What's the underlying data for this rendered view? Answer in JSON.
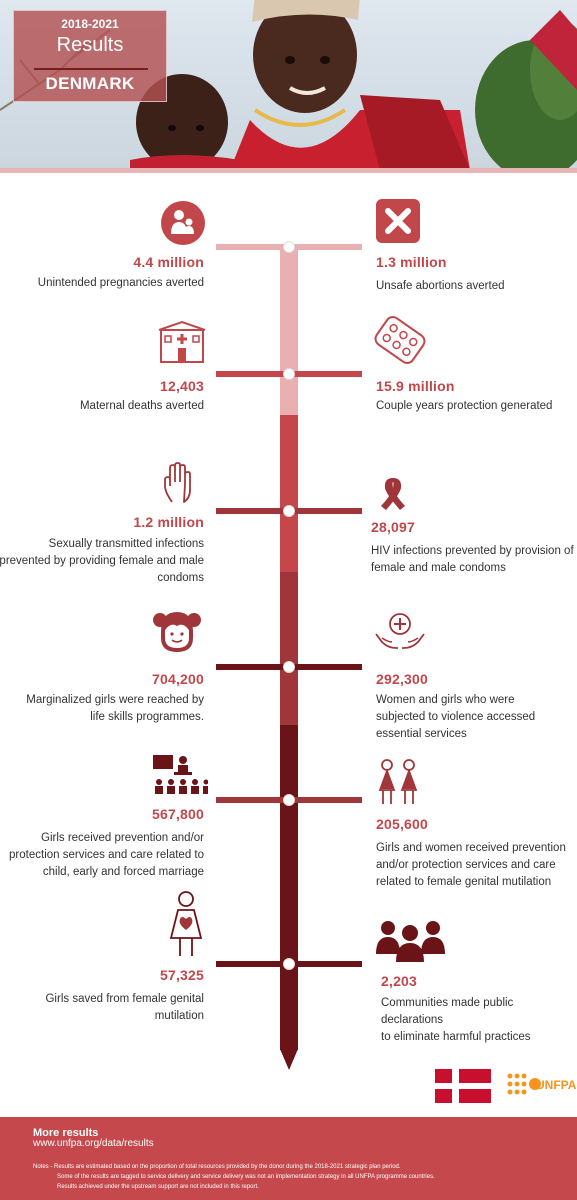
{
  "header": {
    "years": "2018-2021",
    "subtitle": "Results",
    "country": "DENMARK"
  },
  "metrics": {
    "m1": {
      "value": "4.4 million",
      "label": "Unintended pregnancies averted",
      "icon": "family-icon"
    },
    "m2": {
      "value": "1.3 million",
      "label": "Unsafe abortions averted",
      "icon": "cross-icon"
    },
    "m3": {
      "value": "12,403",
      "label": "Maternal deaths averted",
      "icon": "hospital-icon"
    },
    "m4": {
      "value": "15.9 million",
      "label": "Couple years protection generated",
      "icon": "pill-pack-icon"
    },
    "m5": {
      "value": "1.2 million",
      "label_lines": [
        "Sexually transmitted infections",
        "prevented by providing female and male",
        "condoms"
      ],
      "icon": "hand-icon"
    },
    "m6": {
      "value": "28,097",
      "label_lines": [
        "HIV infections prevented by provision of",
        "female and male condoms"
      ],
      "icon": "ribbon-icon"
    },
    "m7": {
      "value": "704,200",
      "label_lines": [
        "Marginalized girls were reached by",
        "life skills programmes."
      ],
      "icon": "girl-icon"
    },
    "m8": {
      "value": "292,300",
      "label_lines": [
        "Women and girls who were",
        "subjected to violence accessed",
        "essential services"
      ],
      "icon": "care-hands-icon"
    },
    "m9": {
      "value": "567,800",
      "label_lines": [
        "Girls received prevention and/or",
        "protection services and care related to",
        "child, early and forced marriage"
      ],
      "icon": "classroom-icon"
    },
    "m10": {
      "value": "205,600",
      "label_lines": [
        "Girls and women received prevention",
        "and/or protection services and care",
        "related to female genital mutilation"
      ],
      "icon": "women-icon"
    },
    "m11": {
      "value": "57,325",
      "label_lines": [
        "Girls saved from female genital",
        "mutilation"
      ],
      "icon": "girl-heart-icon"
    },
    "m12": {
      "value": "2,203",
      "label_lines": [
        "Communities made public declarations",
        "to eliminate harmful practices"
      ],
      "icon": "community-icon"
    }
  },
  "footer": {
    "more_title": "More results",
    "more_url": "www.unfpa.org/data/results",
    "notes": [
      "Notes - Results are estimated based on the proportion of total resources provided by the donor during the 2018-2021 strategic plan period.",
      "Some of the results are tagged to service delivery and service delivery was not an implementation strategy in all UNFPA programme countries.",
      "Results achieved under the upstream support are not included in this report."
    ],
    "logo_text": "UNFPA"
  },
  "colors": {
    "accent": "#c2474b",
    "light_pink": "#e8b0b0",
    "mid_red": "#c5474b",
    "dark_red": "#a0363a",
    "maroon": "#6b1418",
    "footer_bg": "#c5494c"
  }
}
